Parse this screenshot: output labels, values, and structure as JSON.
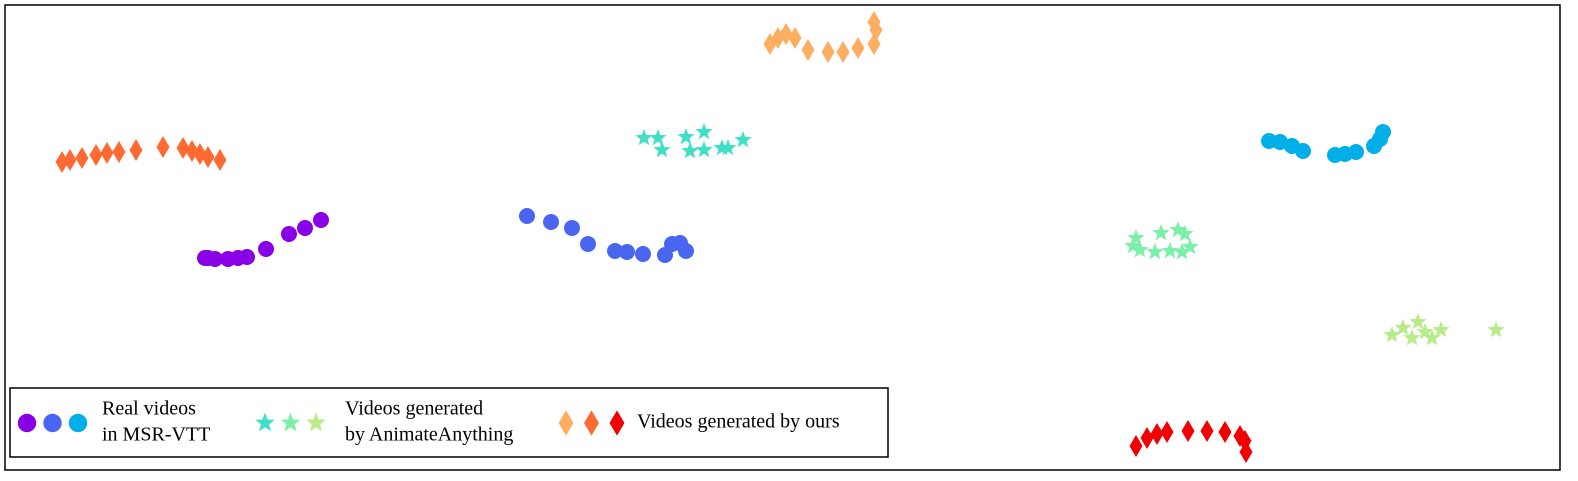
{
  "chart_data": {
    "type": "scatter",
    "xlim": [
      5,
      1560
    ],
    "ylim": [
      470,
      5
    ],
    "groups": [
      {
        "label": [
          "Real videos",
          "in MSR-VTT"
        ],
        "marker": "circle",
        "series": [
          {
            "color": "#8a00e6",
            "x": [
              205,
              208,
              215,
              228,
              238,
              247,
              266,
              289,
              305,
              321
            ],
            "y": [
              258,
              258,
              259,
              259,
              258,
              257,
              249,
              234,
              228,
              220
            ]
          },
          {
            "color": "#4a66f0",
            "x": [
              527,
              551,
              572,
              588,
              615,
              627,
              643,
              665,
              672,
              680,
              686
            ],
            "y": [
              216,
              222,
              228,
              244,
              251,
              252,
              254,
              255,
              244,
              243,
              251
            ]
          },
          {
            "color": "#00aee8",
            "x": [
              1269,
              1280,
              1292,
              1303,
              1335,
              1345,
              1356,
              1374,
              1380,
              1383
            ],
            "y": [
              141,
              142,
              146,
              151,
              155,
              154,
              152,
              146,
              139,
              132
            ]
          }
        ]
      },
      {
        "label": [
          "Videos generated",
          "by AnimateAnything"
        ],
        "marker": "star",
        "series": [
          {
            "color": "#40e0c8",
            "x": [
              644,
              658,
              662,
              686,
              690,
              704,
              704,
              722,
              728,
              743
            ],
            "y": [
              138,
              138,
              150,
              137,
              151,
              132,
              150,
              148,
              148,
              140
            ]
          },
          {
            "color": "#7af0a8",
            "x": [
              1133,
              1136,
              1140,
              1155,
              1161,
              1170,
              1178,
              1182,
              1185,
              1190
            ],
            "y": [
              246,
              238,
              250,
              252,
              233,
              251,
              230,
              252,
              234,
              247
            ]
          },
          {
            "color": "#b8ec88",
            "x": [
              1392,
              1403,
              1412,
              1418,
              1425,
              1432,
              1441,
              1496
            ],
            "y": [
              335,
              328,
              338,
              322,
              332,
              338,
              330,
              330
            ]
          }
        ]
      },
      {
        "label": [
          "Videos generated by ours"
        ],
        "marker": "diamond",
        "series": [
          {
            "color": "#ffad60",
            "x": [
              770,
              778,
              786,
              795,
              808,
              828,
              843,
              858,
              874,
              876,
              874
            ],
            "y": [
              44,
              38,
              34,
              38,
              50,
              52,
              52,
              48,
              44,
              30,
              22
            ]
          },
          {
            "color": "#ff6a33",
            "x": [
              62,
              70,
              82,
              96,
              107,
              119,
              136,
              163,
              183,
              192,
              200,
              208,
              220
            ],
            "y": [
              162,
              160,
              158,
              155,
              153,
              152,
              150,
              147,
              148,
              151,
              154,
              157,
              160
            ]
          },
          {
            "color": "#f00000",
            "x": [
              1136,
              1147,
              1157,
              1167,
              1188,
              1207,
              1225,
              1240,
              1245,
              1246
            ],
            "y": [
              446,
              438,
              434,
              432,
              431,
              431,
              432,
              436,
              441,
              452
            ]
          }
        ]
      }
    ]
  }
}
